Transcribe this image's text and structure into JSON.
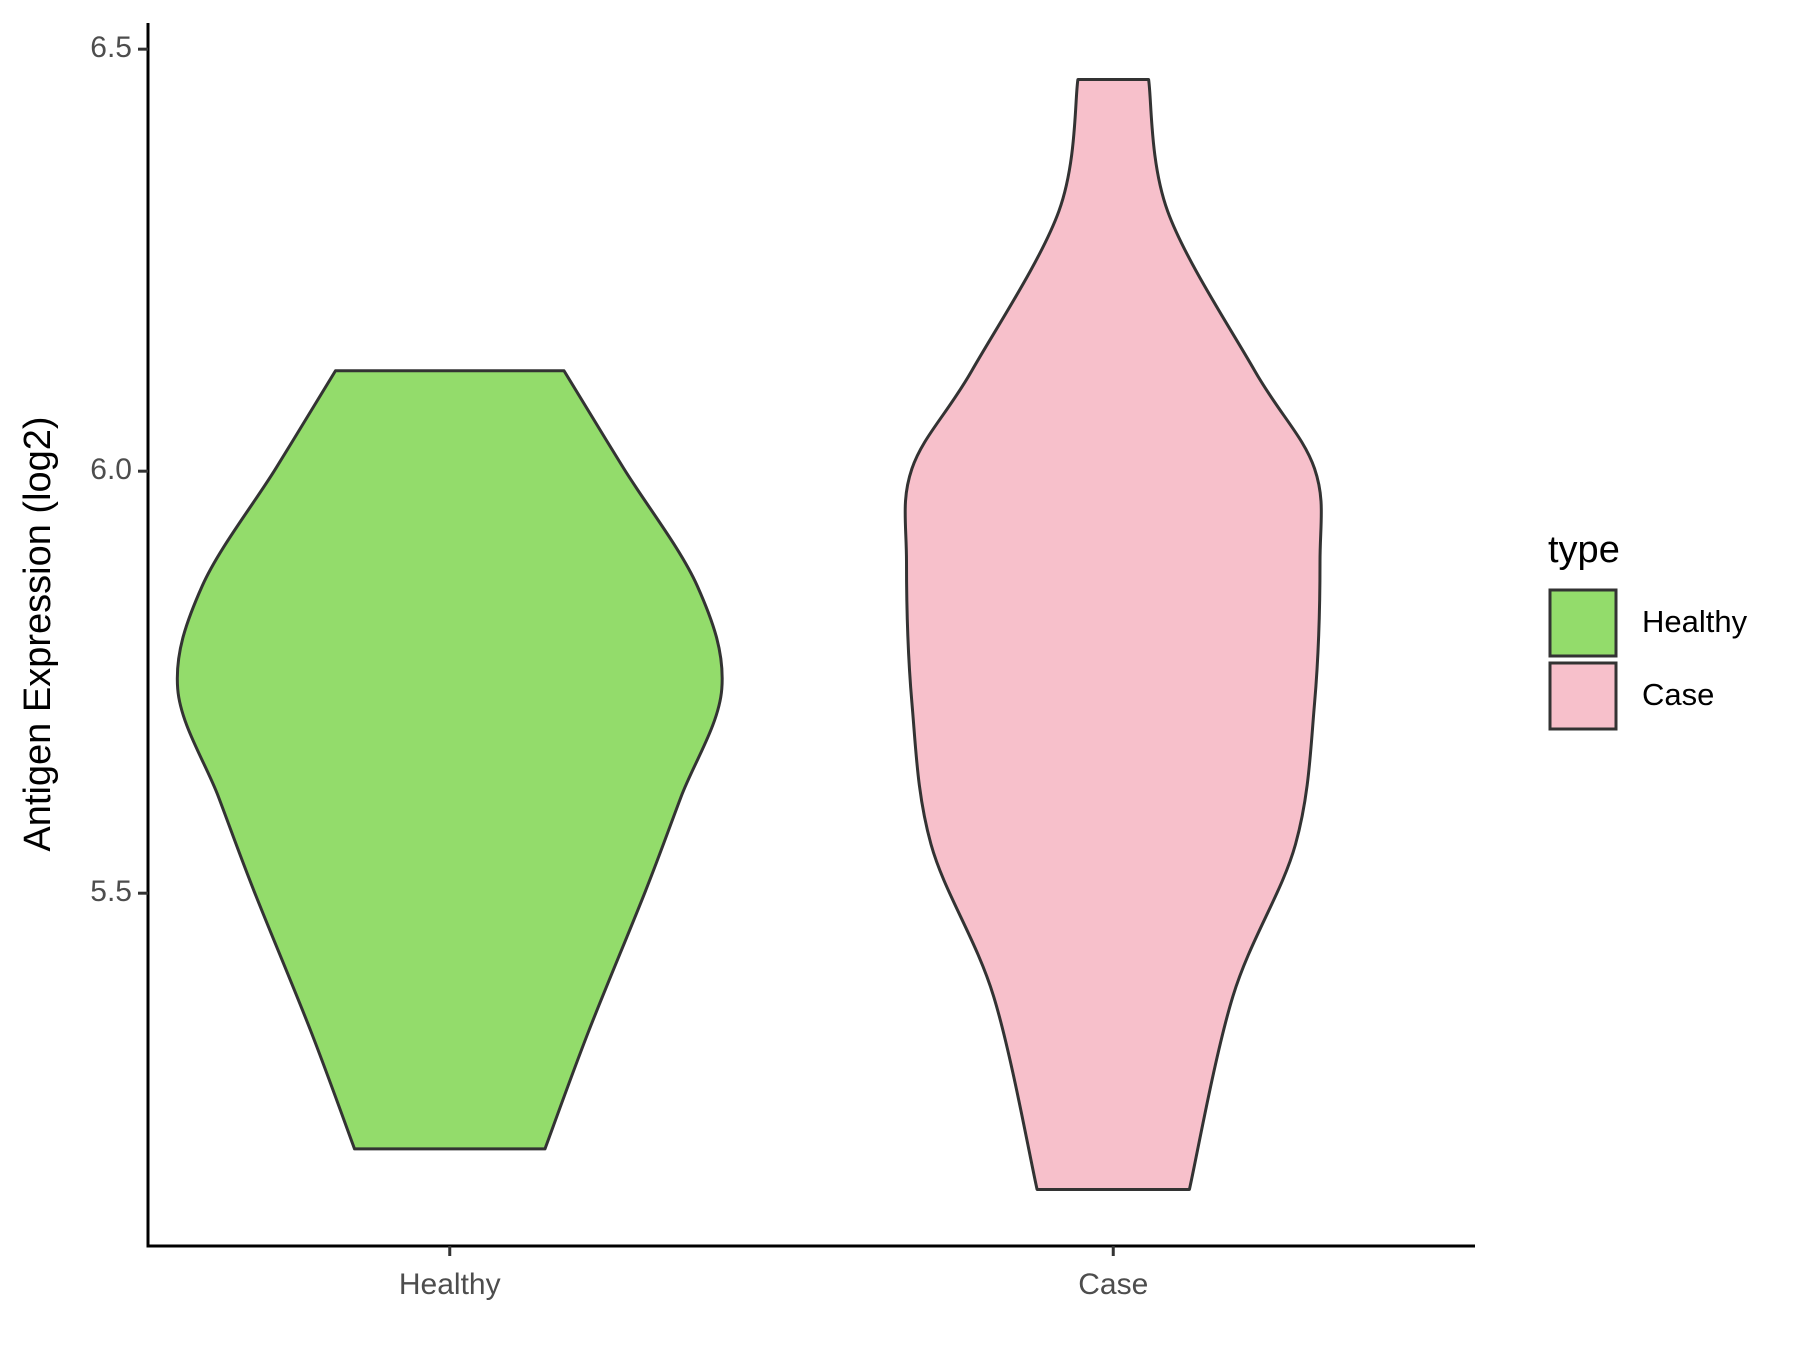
{
  "chart_data": {
    "type": "violin",
    "y_label": "Antigen Expression (log2)",
    "categories": [
      "Healthy",
      "Case"
    ],
    "legend_title": "type",
    "legend": "right",
    "series": [
      {
        "name": "Healthy",
        "color": "#93dc6b",
        "y": [
          6.119,
          6.003,
          5.864,
          5.742,
          5.614,
          5.503,
          5.336,
          5.197
        ],
        "density": [
          0.42,
          0.64,
          0.91,
          1.0,
          0.85,
          0.72,
          0.51,
          0.35
        ]
      },
      {
        "name": "Case",
        "color": "#f7c0cb",
        "y": [
          6.464,
          6.308,
          6.119,
          6.003,
          5.892,
          5.725,
          5.558,
          5.378,
          5.149
        ],
        "density": [
          0.13,
          0.2,
          0.52,
          0.74,
          0.76,
          0.74,
          0.67,
          0.44,
          0.28
        ]
      }
    ],
    "ylim": [
      5.082,
      6.531
    ],
    "yticks": [
      5.5,
      {
        "value": 6,
        "label": "6.0"
      },
      6.5
    ]
  }
}
